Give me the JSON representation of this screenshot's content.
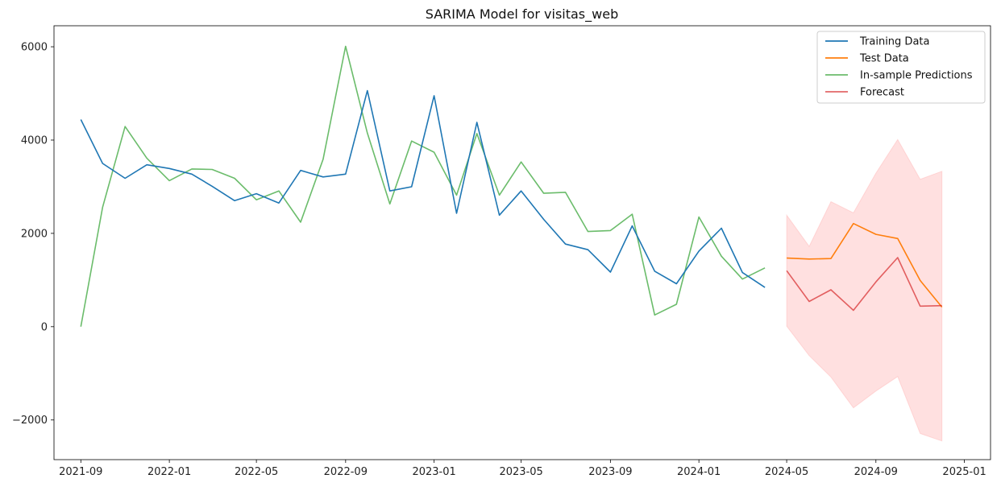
{
  "chart_data": {
    "type": "line",
    "title": "SARIMA Model for visitas_web",
    "xlabel": "",
    "ylabel": "",
    "xlim": [
      "2021-07-26",
      "2025-02-06"
    ],
    "ylim": [
      -2850,
      6450
    ],
    "grid": false,
    "legend_position": "top-right",
    "x_ticks": [
      "2021-09",
      "2022-01",
      "2022-05",
      "2022-09",
      "2023-01",
      "2023-05",
      "2023-09",
      "2024-01",
      "2024-05",
      "2024-09",
      "2025-01"
    ],
    "y_ticks": [
      -2000,
      0,
      2000,
      4000,
      6000
    ],
    "y_tick_labels": [
      "−2000",
      "0",
      "2000",
      "4000",
      "6000"
    ],
    "series": [
      {
        "name": "Training Data",
        "color": "#1f77b4",
        "x": [
          "2021-09-01",
          "2021-10-01",
          "2021-11-01",
          "2021-12-01",
          "2022-01-01",
          "2022-02-01",
          "2022-03-01",
          "2022-04-01",
          "2022-05-01",
          "2022-06-01",
          "2022-07-01",
          "2022-08-01",
          "2022-09-01",
          "2022-10-01",
          "2022-11-01",
          "2022-12-01",
          "2023-01-01",
          "2023-02-01",
          "2023-03-01",
          "2023-04-01",
          "2023-05-01",
          "2023-06-01",
          "2023-07-01",
          "2023-08-01",
          "2023-09-01",
          "2023-10-01",
          "2023-11-01",
          "2023-12-01",
          "2024-01-01",
          "2024-02-01",
          "2024-03-01",
          "2024-04-01"
        ],
        "values": [
          4440,
          3500,
          3180,
          3470,
          3390,
          3270,
          3010,
          2700,
          2850,
          2650,
          3350,
          3210,
          3270,
          5060,
          2910,
          3000,
          4950,
          2430,
          4380,
          2390,
          2910,
          2300,
          1770,
          1650,
          1170,
          2160,
          1190,
          920,
          1620,
          2110,
          1160,
          840
        ]
      },
      {
        "name": "Test Data",
        "color": "#ff7f0e",
        "x": [
          "2024-05-01",
          "2024-06-01",
          "2024-07-01",
          "2024-08-01",
          "2024-09-01",
          "2024-10-01",
          "2024-11-01",
          "2024-12-01"
        ],
        "values": [
          1470,
          1450,
          1460,
          2210,
          1980,
          1890,
          990,
          420
        ]
      },
      {
        "name": "In-sample Predictions",
        "color": "#2ca02c",
        "opacity": 0.7,
        "x": [
          "2021-09-01",
          "2021-10-01",
          "2021-11-01",
          "2021-12-01",
          "2022-01-01",
          "2022-02-01",
          "2022-03-01",
          "2022-04-01",
          "2022-05-01",
          "2022-06-01",
          "2022-07-01",
          "2022-08-01",
          "2022-09-01",
          "2022-10-01",
          "2022-11-01",
          "2022-12-01",
          "2023-01-01",
          "2023-02-01",
          "2023-03-01",
          "2023-04-01",
          "2023-05-01",
          "2023-06-01",
          "2023-07-01",
          "2023-08-01",
          "2023-09-01",
          "2023-10-01",
          "2023-11-01",
          "2023-12-01",
          "2024-01-01",
          "2024-02-01",
          "2024-03-01",
          "2024-04-01"
        ],
        "values": [
          0,
          2560,
          4290,
          3610,
          3130,
          3380,
          3370,
          3180,
          2720,
          2910,
          2240,
          3590,
          6010,
          4150,
          2630,
          3980,
          3740,
          2820,
          4140,
          2820,
          3530,
          2860,
          2880,
          2040,
          2060,
          2410,
          250,
          480,
          2350,
          1510,
          1020,
          1260
        ]
      },
      {
        "name": "Forecast",
        "color": "#d62728",
        "opacity": 0.7,
        "x": [
          "2024-05-01",
          "2024-06-01",
          "2024-07-01",
          "2024-08-01",
          "2024-09-01",
          "2024-10-01",
          "2024-11-01",
          "2024-12-01"
        ],
        "values": [
          1200,
          540,
          790,
          350,
          960,
          1480,
          440,
          450
        ]
      }
    ],
    "confidence_band": {
      "series": "Forecast",
      "color": "#ff9999",
      "opacity": 0.3,
      "x": [
        "2024-05-01",
        "2024-06-01",
        "2024-07-01",
        "2024-08-01",
        "2024-09-01",
        "2024-10-01",
        "2024-11-01",
        "2024-12-01"
      ],
      "lower": [
        10,
        -620,
        -1080,
        -1740,
        -1380,
        -1070,
        -2290,
        -2450
      ],
      "upper": [
        2390,
        1720,
        2680,
        2440,
        3290,
        4010,
        3160,
        3330
      ]
    }
  }
}
